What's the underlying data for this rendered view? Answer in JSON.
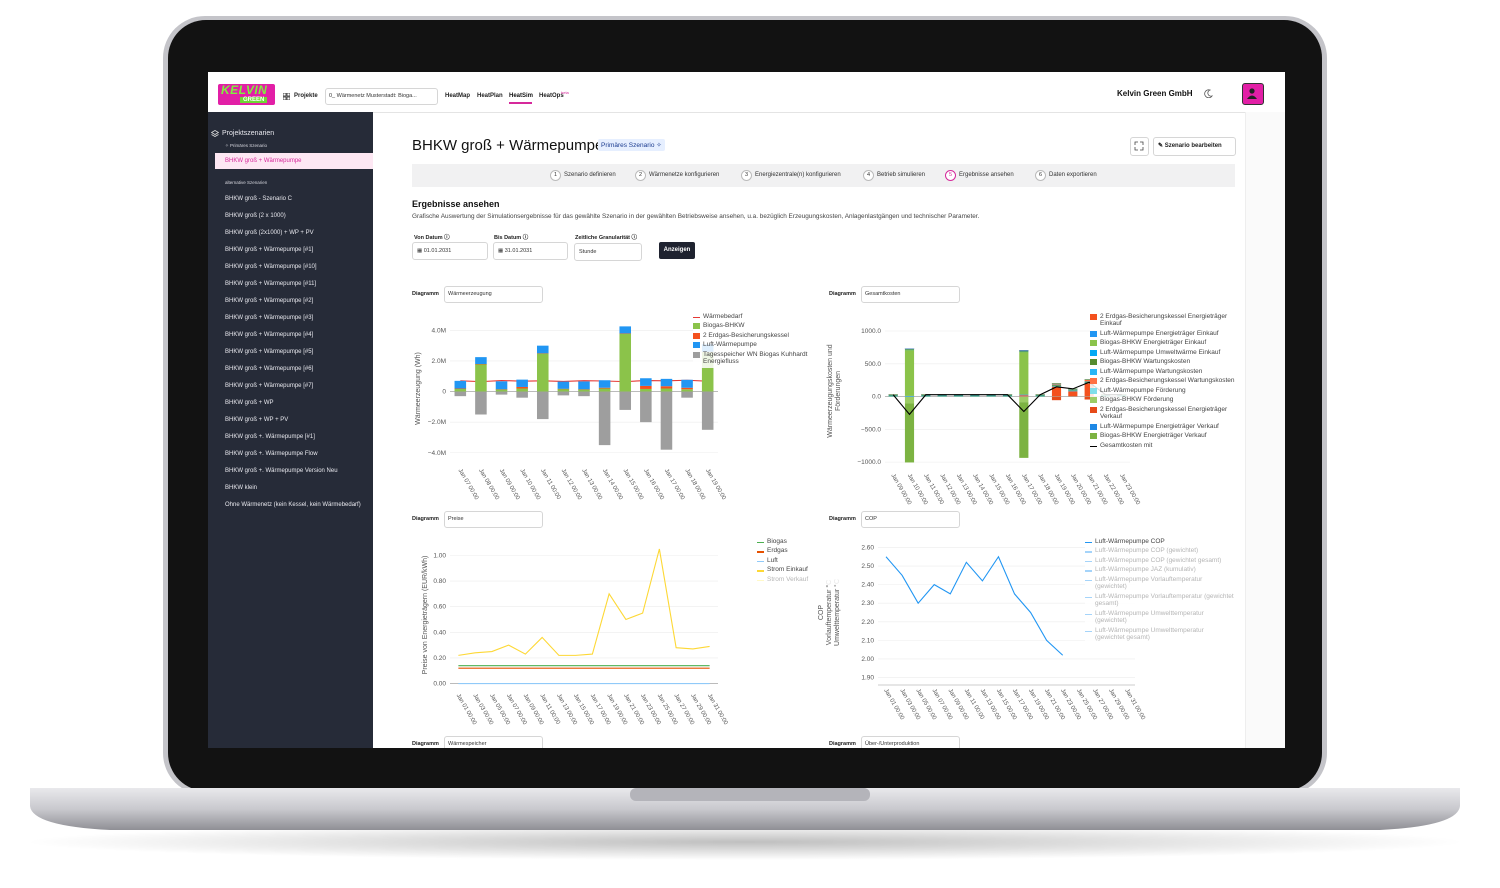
{
  "header": {
    "logo_line1": "KELVIN",
    "logo_line2": "GREEN",
    "projects": "Projekte",
    "project_select": "0_ Wärmenetz Musterstadt: Bioga...",
    "nav": [
      "HeatMap",
      "HeatPlan",
      "HeatSim",
      "HeatOps"
    ],
    "nav_badge": "beta",
    "company": "Kelvin Green GmbH"
  },
  "sidebar": {
    "title": "Projektszenarien",
    "primary_label": "Primäres Szenario",
    "primary": "BHKW groß + Wärmepumpe",
    "alt_label": "alternative Szenarien",
    "alternatives": [
      "BHKW groß - Szenario C",
      "BHKW groß (2 x 1000)",
      "BHKW groß (2x1000) + WP + PV",
      "BHKW groß + Wärmepumpe [#1]",
      "BHKW groß + Wärmepumpe [#10]",
      "BHKW groß + Wärmepumpe [#11]",
      "BHKW groß + Wärmepumpe [#2]",
      "BHKW groß + Wärmepumpe [#3]",
      "BHKW groß + Wärmepumpe [#4]",
      "BHKW groß + Wärmepumpe [#5]",
      "BHKW groß + Wärmepumpe [#6]",
      "BHKW groß + Wärmepumpe [#7]",
      "BHKW groß + WP",
      "BHKW groß + WP + PV",
      "BHKW groß +. Wärmepumpe [#1]",
      "BHKW groß +. Wärmepumpe Flow",
      "BHKW groß +. Wärmepumpe Version Neu",
      "BHKW klein",
      "Ohne Wärmenetz (kein Kessel, kein Wärmebedarf)"
    ]
  },
  "main": {
    "title": "BHKW groß + Wärmepumpe",
    "badge": "Primäres Szenario",
    "edit": "Szenario bearbeiten",
    "steps": [
      {
        "number": 1,
        "label": "Szenario definieren"
      },
      {
        "number": 2,
        "label": "Wärmenetze konfigurieren"
      },
      {
        "number": 3,
        "label": "Energiezentrale(n) konfigurieren"
      },
      {
        "number": 4,
        "label": "Betrieb simulieren"
      },
      {
        "number": 5,
        "label": "Ergebnisse ansehen"
      },
      {
        "number": 6,
        "label": "Daten exportieren"
      }
    ],
    "section_title": "Ergebnisse ansehen",
    "section_desc": "Grafische Auswertung der Simulationsergebnisse für das gewählte Szenario in der gewählten Betriebsweise ansehen, u.a. bezüglich Erzeugungskosten, Anlagenlastgängen und technischer Parameter.",
    "filters": {
      "from_label": "Von Datum",
      "from_value": "01.01.2031",
      "to_label": "Bis Datum",
      "to_value": "31.01.2031",
      "granularity_label": "Zeitliche Granularität",
      "granularity_value": "Stunde"
    },
    "submit": "Anzeigen",
    "more_diagrams": [
      {
        "control_label": "Diagramm",
        "selection": "Wärmespeicher"
      },
      {
        "control_label": "Diagramm",
        "selection": "Über-/Unterproduktion"
      }
    ]
  },
  "chart_data": [
    {
      "type": "bar",
      "control_label": "Diagramm",
      "selection": "Wärmeerzeugung",
      "ylabel": [
        "Wärmeerzeugung (Wh)"
      ],
      "x": [
        "Jan 07 00:00",
        "Jan 08 00:00",
        "Jan 09 00:00",
        "Jan 10 00:00",
        "Jan 11 00:00",
        "Jan 12 00:00",
        "Jan 13 00:00",
        "Jan 14 00:00",
        "Jan 15 00:00",
        "Jan 16 00:00",
        "Jan 17 00:00",
        "Jan 18 00:00",
        "Jan 19 00:00"
      ],
      "ylim": [
        -4800000,
        5200000
      ],
      "yticks": [
        {
          "value": 4000000,
          "label": "4.0M"
        },
        {
          "value": 2000000,
          "label": "2.0M"
        },
        0,
        {
          "value": -2000000,
          "label": "−2.0M"
        },
        {
          "value": -4000000,
          "label": "−4.0M"
        }
      ],
      "grid": true,
      "series": [
        {
          "name": "Wärmebedarf",
          "kind": "line",
          "color": "#e53935",
          "values": [
            700000,
            650000,
            720000,
            680000,
            700000,
            660000,
            710000,
            690000,
            650000,
            720000,
            700000,
            740000,
            680000
          ]
        },
        {
          "name": "Biogas-BHKW",
          "kind": "bar",
          "color": "#8bc34a",
          "values": [
            200000,
            1800000,
            150000,
            200000,
            2500000,
            180000,
            150000,
            200000,
            3800000,
            170000,
            200000,
            150000,
            2600000
          ]
        },
        {
          "name": "2 Erdgas-Besicherungskessel",
          "kind": "bar",
          "color": "#f4511e",
          "values": [
            0,
            0,
            0,
            100000,
            0,
            0,
            0,
            50000,
            0,
            200000,
            150000,
            100000,
            0
          ]
        },
        {
          "name": "Luft-Wärmepumpe",
          "kind": "bar",
          "color": "#2196f3",
          "values": [
            500000,
            450000,
            520000,
            480000,
            500000,
            470000,
            510000,
            490000,
            460000,
            500000,
            480000,
            520000,
            490000
          ]
        },
        {
          "name": "Tagesspeicher WN Biogas Kuhhardt Energiefluss",
          "kind": "bar",
          "color": "#9e9e9e",
          "values": [
            -300000,
            -1500000,
            -200000,
            -400000,
            -1800000,
            -250000,
            -300000,
            -3500000,
            -1200000,
            -2000000,
            -3800000,
            -400000,
            -2500000
          ]
        }
      ]
    },
    {
      "type": "bar",
      "control_label": "Diagramm",
      "selection": "Gesamtkosten",
      "ylabel": [
        "Wärmeerzeugungskosten und",
        "Förderungen"
      ],
      "x": [
        "Jan 09 00:00",
        "Jan 10 00:00",
        "Jan 11 00:00",
        "Jan 12 00:00",
        "Jan 13 00:00",
        "Jan 14 00:00",
        "Jan 15 00:00",
        "Jan 16 00:00",
        "Jan 17 00:00",
        "Jan 18 00:00",
        "Jan 19 00:00",
        "Jan 20 00:00",
        "Jan 21 00:00",
        "Jan 22 00:00",
        "Jan 23 00:00"
      ],
      "ylim": [
        -1120,
        1290
      ],
      "yticks": [
        {
          "value": 1000,
          "label": "1000.0"
        },
        {
          "value": 500,
          "label": "500.0"
        },
        {
          "value": 0,
          "label": "0.0"
        },
        {
          "value": -500,
          "label": "−500.0"
        },
        {
          "value": -1000,
          "label": "−1000.0"
        }
      ],
      "grid": true,
      "series": [
        {
          "name": "2 Erdgas-Besicherungskessel Energieträger Einkauf",
          "kind": "bar",
          "color": "#f4511e",
          "values": [
            0,
            0,
            0,
            0,
            0,
            0,
            0,
            0,
            20,
            0,
            150,
            80,
            200,
            0,
            0
          ]
        },
        {
          "name": "Luft-Wärmepumpe Energieträger Einkauf",
          "kind": "bar",
          "color": "#2196f3",
          "values": [
            10,
            10,
            10,
            10,
            10,
            10,
            10,
            10,
            10,
            10,
            10,
            10,
            10,
            10,
            10
          ]
        },
        {
          "name": "Biogas-BHKW Energieträger Einkauf",
          "kind": "bar",
          "color": "#8bc34a",
          "values": [
            0,
            700,
            0,
            0,
            0,
            0,
            0,
            0,
            650,
            0,
            0,
            0,
            0,
            0,
            0
          ]
        },
        {
          "name": "Luft-Wärmepumpe Umweltwärme Einkauf",
          "kind": "bar",
          "color": "#03a9f4",
          "values": [
            5,
            5,
            5,
            5,
            5,
            5,
            5,
            5,
            5,
            5,
            5,
            5,
            5,
            5,
            5
          ]
        },
        {
          "name": "Biogas-BHKW Wartungskosten",
          "kind": "bar",
          "color": "#558b2f",
          "values": [
            15,
            15,
            15,
            15,
            15,
            15,
            15,
            15,
            15,
            15,
            15,
            15,
            15,
            15,
            15
          ]
        },
        {
          "name": "Luft-Wärmepumpe Wartungskosten",
          "kind": "bar",
          "color": "#29b6f6",
          "values": [
            3,
            3,
            3,
            3,
            3,
            3,
            3,
            3,
            3,
            3,
            3,
            3,
            3,
            3,
            3
          ]
        },
        {
          "name": "2 Erdgas-Besicherungskessel Wartungskosten",
          "kind": "bar",
          "color": "#ff7043",
          "values": [
            0,
            0,
            0,
            0,
            0,
            0,
            0,
            0,
            5,
            0,
            20,
            10,
            30,
            0,
            0
          ]
        },
        {
          "name": "Luft-Wärmepumpe Förderung",
          "kind": "bar",
          "color": "#80deea",
          "values": [
            -5,
            -5,
            -5,
            -5,
            -5,
            -5,
            -5,
            -5,
            -5,
            -5,
            -5,
            -5,
            -5,
            -5,
            -5
          ]
        },
        {
          "name": "Biogas-BHKW Förderung",
          "kind": "bar",
          "color": "#9ccc65",
          "values": [
            0,
            -100,
            0,
            0,
            0,
            0,
            0,
            0,
            -80,
            0,
            0,
            0,
            0,
            0,
            0
          ]
        },
        {
          "name": "2 Erdgas-Besicherungskessel Energieträger Verkauf",
          "kind": "bar",
          "color": "#e64a19",
          "values": [
            0,
            0,
            0,
            0,
            0,
            0,
            0,
            0,
            0,
            0,
            -50,
            0,
            -40,
            0,
            0
          ]
        },
        {
          "name": "Luft-Wärmepumpe Energieträger Verkauf",
          "kind": "bar",
          "color": "#1e88e5",
          "values": [
            0,
            0,
            0,
            0,
            0,
            0,
            0,
            0,
            0,
            0,
            0,
            0,
            0,
            0,
            0
          ]
        },
        {
          "name": "Biogas-BHKW Energieträger Verkauf",
          "kind": "bar",
          "color": "#7cb342",
          "values": [
            0,
            -900,
            0,
            0,
            0,
            0,
            0,
            0,
            -850,
            0,
            0,
            0,
            0,
            0,
            0
          ]
        },
        {
          "name": "Gesamtkosten mit",
          "kind": "line",
          "color": "#000000",
          "values": [
            28,
            -272,
            28,
            28,
            28,
            28,
            28,
            28,
            -227,
            28,
            148,
            118,
            218,
            28,
            28
          ]
        }
      ]
    },
    {
      "type": "line",
      "control_label": "Diagramm",
      "selection": "Preise",
      "ylabel": [
        "Preise von Energieträgern (EUR/kWh)"
      ],
      "x": [
        "Jan 01 00:00",
        "Jan 03 00:00",
        "Jan 05 00:00",
        "Jan 07 00:00",
        "Jan 09 00:00",
        "Jan 11 00:00",
        "Jan 13 00:00",
        "Jan 15 00:00",
        "Jan 17 00:00",
        "Jan 19 00:00",
        "Jan 21 00:00",
        "Jan 23 00:00",
        "Jan 25 00:00",
        "Jan 27 00:00",
        "Jan 29 00:00",
        "Jan 31 00:00"
      ],
      "ylim": [
        -0.05,
        1.12
      ],
      "yticks": [
        {
          "value": 1,
          "label": "1.00"
        },
        {
          "value": 0.8,
          "label": "0.80"
        },
        {
          "value": 0.6,
          "label": "0.60"
        },
        {
          "value": 0.4,
          "label": "0.40"
        },
        {
          "value": 0.2,
          "label": "0.20"
        },
        {
          "value": 0,
          "label": "0.00"
        }
      ],
      "grid": true,
      "series": [
        {
          "name": "Biogas",
          "kind": "line",
          "color": "#4caf50",
          "values": [
            0.14,
            0.14,
            0.14,
            0.14,
            0.14,
            0.14,
            0.14,
            0.14,
            0.14,
            0.14,
            0.14,
            0.14,
            0.14,
            0.14,
            0.14,
            0.14
          ]
        },
        {
          "name": "Erdgas",
          "kind": "line",
          "color": "#e65100",
          "values": [
            0.12,
            0.12,
            0.12,
            0.12,
            0.12,
            0.12,
            0.12,
            0.12,
            0.12,
            0.12,
            0.12,
            0.12,
            0.12,
            0.12,
            0.12,
            0.12
          ]
        },
        {
          "name": "Luft",
          "kind": "line",
          "color": "#90caf9",
          "values": [
            0,
            0,
            0,
            0,
            0,
            0,
            0,
            0,
            0,
            0,
            0,
            0,
            0,
            0,
            0,
            0
          ]
        },
        {
          "name": "Strom Einkauf",
          "kind": "line",
          "color": "#fdd835",
          "values": [
            0.22,
            0.24,
            0.25,
            0.3,
            0.23,
            0.36,
            0.22,
            0.22,
            0.23,
            0.7,
            0.5,
            0.55,
            1.05,
            0.28,
            0.27,
            0.29
          ]
        },
        {
          "name": "Strom Verkauf",
          "kind": "line",
          "color": "#fff176",
          "visible": false
        }
      ]
    },
    {
      "type": "line",
      "control_label": "Diagramm",
      "selection": "COP",
      "ylabel": [
        "COP",
        "Vorlauftemperatur °C",
        "Umwelttemperatur °C"
      ],
      "x": [
        "Jan 01 00:00",
        "Jan 03 00:00",
        "Jan 05 00:00",
        "Jan 07 00:00",
        "Jan 09 00:00",
        "Jan 11 00:00",
        "Jan 13 00:00",
        "Jan 15 00:00",
        "Jan 17 00:00",
        "Jan 19 00:00",
        "Jan 21 00:00",
        "Jan 23 00:00",
        "Jan 25 00:00",
        "Jan 27 00:00",
        "Jan 29 00:00",
        "Jan 31 00:00"
      ],
      "ylim": [
        1.86,
        2.64
      ],
      "yticks": [
        {
          "value": 2.6,
          "label": "2.60"
        },
        {
          "value": 2.5,
          "label": "2.50"
        },
        {
          "value": 2.4,
          "label": "2.40"
        },
        {
          "value": 2.3,
          "label": "2.30"
        },
        {
          "value": 2.2,
          "label": "2.20"
        },
        {
          "value": 2.1,
          "label": "2.10"
        },
        {
          "value": 2,
          "label": "2.00"
        },
        {
          "value": 1.9,
          "label": "1.90"
        }
      ],
      "grid": true,
      "series": [
        {
          "name": "Luft-Wärmepumpe COP",
          "kind": "line",
          "color": "#2196f3",
          "values": [
            2.55,
            2.45,
            2.3,
            2.4,
            2.35,
            2.52,
            2.42,
            2.55,
            2.35,
            2.25,
            2.1,
            2.02,
            null,
            null,
            null,
            null
          ]
        },
        {
          "name": "Luft-Wärmepumpe COP (gewichtet)",
          "kind": "line",
          "color": "#2196f3",
          "visible": false
        },
        {
          "name": "Luft-Wärmepumpe COP (gewichtet gesamt)",
          "kind": "line",
          "color": "#2196f3",
          "visible": false
        },
        {
          "name": "Luft-Wärmepumpe JAZ (kumulativ)",
          "kind": "line",
          "color": "#2196f3",
          "visible": false
        },
        {
          "name": "Luft-Wärmepumpe Vorlauftemperatur (gewichtet)",
          "kind": "line",
          "color": "#2196f3",
          "visible": false
        },
        {
          "name": "Luft-Wärmepumpe Vorlauftemperatur (gewichtet gesamt)",
          "kind": "line",
          "color": "#2196f3",
          "visible": false
        },
        {
          "name": "Luft-Wärmepumpe Umwelttemperatur (gewichtet)",
          "kind": "line",
          "color": "#2196f3",
          "visible": false
        },
        {
          "name": "Luft-Wärmepumpe Umwelttemperatur (gewichtet gesamt)",
          "kind": "line",
          "color": "#2196f3",
          "visible": false
        }
      ]
    }
  ]
}
